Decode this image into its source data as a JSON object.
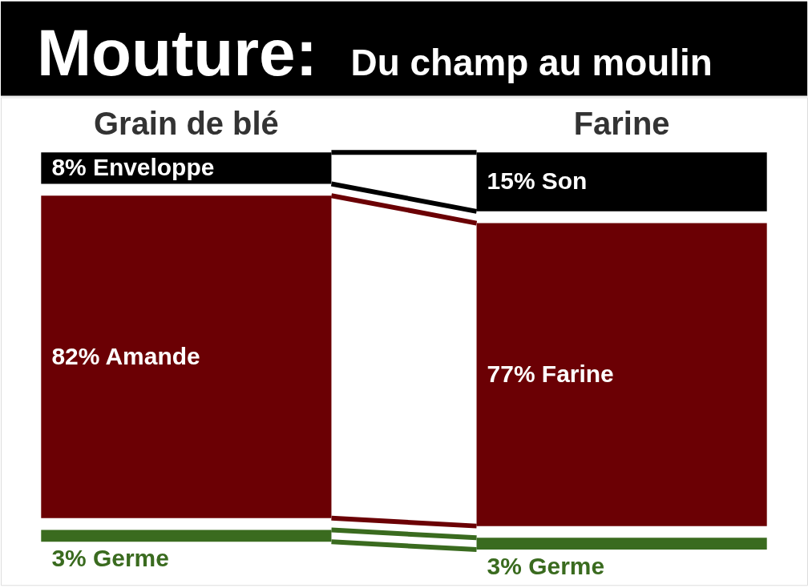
{
  "chart_data": {
    "type": "other",
    "title": "Mouture:",
    "subtitle": "Du champ au moulin",
    "categories": [
      "Grain de blé",
      "Farine"
    ],
    "series": [
      {
        "color": "#000000",
        "values": [
          8,
          15
        ],
        "value_labels": [
          "8% Enveloppe",
          "15% Son"
        ]
      },
      {
        "color": "#6b0004",
        "values": [
          82,
          77
        ],
        "value_labels": [
          "82% Amande",
          "77% Farine"
        ]
      },
      {
        "color": "#3a6b1f",
        "values": [
          3,
          3
        ],
        "value_labels": [
          "3% Germe",
          "3% Germe"
        ]
      }
    ]
  }
}
